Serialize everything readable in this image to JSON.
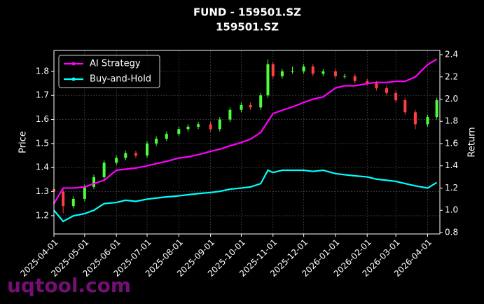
{
  "chart_data": {
    "type": "candlestick",
    "title": "FUND - 159501.SZ",
    "subtitle": "159501.SZ",
    "y_label": "Price",
    "y2_label": "Return",
    "watermark": "uqtool.com",
    "x": [
      "2025-04-01",
      "2025-04-10",
      "2025-04-20",
      "2025-05-01",
      "2025-05-10",
      "2025-05-20",
      "2025-06-01",
      "2025-06-10",
      "2025-06-20",
      "2025-07-01",
      "2025-07-10",
      "2025-07-20",
      "2025-08-01",
      "2025-08-10",
      "2025-08-20",
      "2025-09-01",
      "2025-09-10",
      "2025-09-20",
      "2025-10-01",
      "2025-10-10",
      "2025-10-20",
      "2025-10-27",
      "2025-11-01",
      "2025-11-10",
      "2025-11-20",
      "2025-12-01",
      "2025-12-10",
      "2025-12-20",
      "2026-01-01",
      "2026-01-10",
      "2026-01-20",
      "2026-02-01",
      "2026-02-10",
      "2026-02-20",
      "2026-03-01",
      "2026-03-10",
      "2026-03-20",
      "2026-04-01",
      "2026-04-10"
    ],
    "open": [
      1.31,
      1.3,
      1.24,
      1.27,
      1.32,
      1.36,
      1.42,
      1.44,
      1.46,
      1.45,
      1.5,
      1.52,
      1.54,
      1.56,
      1.57,
      1.58,
      1.56,
      1.6,
      1.64,
      1.66,
      1.65,
      1.7,
      1.83,
      1.78,
      1.8,
      1.8,
      1.82,
      1.79,
      1.8,
      1.78,
      1.78,
      1.76,
      1.75,
      1.73,
      1.71,
      1.68,
      1.63,
      1.58,
      1.61
    ],
    "high": [
      1.33,
      1.31,
      1.28,
      1.33,
      1.37,
      1.43,
      1.45,
      1.47,
      1.47,
      1.51,
      1.53,
      1.55,
      1.57,
      1.58,
      1.59,
      1.59,
      1.61,
      1.65,
      1.67,
      1.67,
      1.71,
      1.85,
      1.84,
      1.81,
      1.82,
      1.83,
      1.83,
      1.81,
      1.81,
      1.79,
      1.79,
      1.77,
      1.76,
      1.74,
      1.72,
      1.69,
      1.64,
      1.62,
      1.69
    ],
    "low": [
      1.29,
      1.21,
      1.23,
      1.26,
      1.31,
      1.35,
      1.41,
      1.43,
      1.44,
      1.44,
      1.49,
      1.51,
      1.53,
      1.55,
      1.56,
      1.55,
      1.55,
      1.59,
      1.63,
      1.64,
      1.64,
      1.69,
      1.77,
      1.77,
      1.79,
      1.79,
      1.78,
      1.78,
      1.77,
      1.77,
      1.75,
      1.74,
      1.72,
      1.7,
      1.67,
      1.62,
      1.56,
      1.57,
      1.6
    ],
    "close": [
      1.3,
      1.24,
      1.27,
      1.32,
      1.36,
      1.42,
      1.44,
      1.46,
      1.45,
      1.5,
      1.52,
      1.54,
      1.56,
      1.57,
      1.58,
      1.56,
      1.6,
      1.64,
      1.66,
      1.65,
      1.7,
      1.83,
      1.78,
      1.8,
      1.8,
      1.82,
      1.79,
      1.8,
      1.78,
      1.78,
      1.76,
      1.75,
      1.73,
      1.71,
      1.68,
      1.63,
      1.58,
      1.61,
      1.68
    ],
    "up_color": "#4cff3c",
    "down_color": "#ff4040",
    "series": [
      {
        "name": "AI Strategy",
        "color": "#ff00ff",
        "axis": "y2",
        "values": [
          1.06,
          1.2,
          1.2,
          1.21,
          1.24,
          1.27,
          1.36,
          1.37,
          1.38,
          1.4,
          1.42,
          1.44,
          1.47,
          1.48,
          1.5,
          1.53,
          1.55,
          1.58,
          1.61,
          1.64,
          1.7,
          1.8,
          1.87,
          1.9,
          1.93,
          1.97,
          2.0,
          2.02,
          2.1,
          2.12,
          2.12,
          2.14,
          2.15,
          2.15,
          2.16,
          2.16,
          2.2,
          2.31,
          2.36
        ]
      },
      {
        "name": "Buy-and-Hold",
        "color": "#00ffff",
        "axis": "y2",
        "values": [
          1.0,
          0.9,
          0.95,
          0.97,
          1.0,
          1.06,
          1.07,
          1.09,
          1.08,
          1.1,
          1.11,
          1.12,
          1.13,
          1.14,
          1.15,
          1.16,
          1.17,
          1.19,
          1.2,
          1.21,
          1.24,
          1.36,
          1.34,
          1.36,
          1.36,
          1.36,
          1.35,
          1.36,
          1.33,
          1.32,
          1.31,
          1.3,
          1.28,
          1.27,
          1.26,
          1.24,
          1.22,
          1.2,
          1.25
        ]
      }
    ],
    "xlim": [
      "2025-04-01",
      "2026-04-13"
    ],
    "xticks": [
      "2025-04-01",
      "2025-05-01",
      "2025-06-01",
      "2025-07-01",
      "2025-08-01",
      "2025-09-01",
      "2025-10-01",
      "2025-11-01",
      "2025-12-01",
      "2026-01-01",
      "2026-02-01",
      "2026-03-01",
      "2026-04-01"
    ],
    "ylim": [
      1.124,
      1.887
    ],
    "yticks": [
      1.2,
      1.3,
      1.4,
      1.5,
      1.6,
      1.7,
      1.8
    ],
    "y2lim": [
      0.787,
      2.438
    ],
    "y2ticks": [
      0.8,
      {
        "value": 1,
        "label": "1.0"
      },
      1.2,
      1.4,
      1.6,
      1.8,
      {
        "value": 2,
        "label": "2.0"
      },
      2.2,
      2.4
    ],
    "grid": true,
    "legend": "upper left"
  }
}
